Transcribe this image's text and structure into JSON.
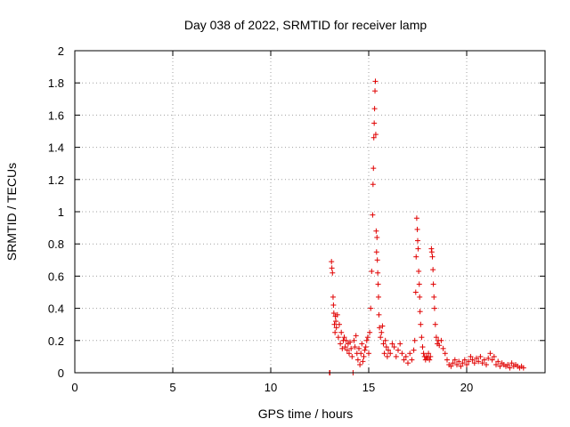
{
  "chart_data": {
    "type": "scatter",
    "title": "Day 038 of 2022, SRMTID for receiver lamp",
    "xlabel": "GPS time / hours",
    "ylabel": "SRMTID / TECUs",
    "xlim": [
      0,
      24
    ],
    "ylim": [
      0,
      2
    ],
    "xticks": [
      0,
      5,
      10,
      15,
      20
    ],
    "yticks": [
      0,
      0.2,
      0.4,
      0.6,
      0.8,
      1,
      1.2,
      1.4,
      1.6,
      1.8,
      2
    ],
    "xtick_labels": [
      "0",
      "5",
      "10",
      "15",
      "20"
    ],
    "ytick_labels": [
      "0",
      "0.2",
      "0.4",
      "0.6",
      "0.8",
      "1",
      "1.2",
      "1.4",
      "1.6",
      "1.8",
      "2"
    ],
    "grid": true,
    "marker": "+",
    "color": "#e00000",
    "series": [
      {
        "name": "SRMTID",
        "x": [
          13.0,
          13.02,
          13.1,
          13.12,
          13.15,
          13.18,
          13.2,
          13.22,
          13.25,
          13.28,
          13.3,
          13.32,
          13.35,
          13.4,
          13.45,
          13.5,
          13.55,
          13.6,
          13.65,
          13.7,
          13.75,
          13.8,
          13.85,
          13.9,
          13.95,
          14.0,
          14.05,
          14.1,
          14.15,
          14.2,
          14.25,
          14.3,
          14.35,
          14.4,
          14.45,
          14.5,
          14.55,
          14.6,
          14.65,
          14.7,
          14.75,
          14.8,
          14.85,
          14.9,
          14.95,
          15.0,
          15.05,
          15.1,
          15.15,
          15.2,
          15.22,
          15.24,
          15.26,
          15.28,
          15.3,
          15.32,
          15.34,
          15.36,
          15.38,
          15.4,
          15.42,
          15.44,
          15.46,
          15.48,
          15.5,
          15.52,
          15.55,
          15.6,
          15.65,
          15.7,
          15.75,
          15.8,
          15.85,
          15.9,
          15.95,
          16.0,
          16.1,
          16.2,
          16.3,
          16.4,
          16.5,
          16.6,
          16.7,
          16.8,
          16.9,
          17.0,
          17.1,
          17.2,
          17.3,
          17.35,
          17.4,
          17.42,
          17.45,
          17.48,
          17.5,
          17.52,
          17.55,
          17.58,
          17.6,
          17.62,
          17.65,
          17.7,
          17.75,
          17.8,
          17.85,
          17.9,
          17.95,
          18.0,
          18.05,
          18.1,
          18.15,
          18.2,
          18.22,
          18.25,
          18.28,
          18.3,
          18.33,
          18.36,
          18.4,
          18.45,
          18.5,
          18.55,
          18.6,
          18.7,
          18.8,
          18.9,
          19.0,
          19.1,
          19.2,
          19.3,
          19.4,
          19.5,
          19.6,
          19.7,
          19.8,
          19.9,
          20.0,
          20.1,
          20.2,
          20.3,
          20.4,
          20.5,
          20.6,
          20.7,
          20.8,
          20.9,
          21.0,
          21.1,
          21.2,
          21.3,
          21.4,
          21.5,
          21.6,
          21.7,
          21.8,
          21.9,
          22.0,
          22.1,
          22.2,
          22.3,
          22.4,
          22.5,
          22.6,
          22.7,
          22.8,
          22.9
        ],
        "y": [
          0.0,
          0.0,
          0.69,
          0.65,
          0.62,
          0.47,
          0.42,
          0.37,
          0.3,
          0.25,
          0.35,
          0.32,
          0.28,
          0.36,
          0.22,
          0.3,
          0.18,
          0.25,
          0.15,
          0.2,
          0.22,
          0.16,
          0.2,
          0.14,
          0.18,
          0.12,
          0.19,
          0.15,
          0.1,
          0.0,
          0.2,
          0.16,
          0.23,
          0.12,
          0.08,
          0.15,
          0.05,
          0.12,
          0.18,
          0.07,
          0.1,
          0.14,
          0.16,
          0.2,
          0.22,
          0.12,
          0.25,
          0.4,
          0.63,
          0.98,
          1.17,
          1.27,
          1.46,
          1.55,
          1.64,
          1.75,
          1.81,
          1.48,
          0.88,
          0.75,
          0.84,
          0.7,
          0.62,
          0.55,
          0.47,
          0.36,
          0.28,
          0.22,
          0.25,
          0.29,
          0.18,
          0.12,
          0.2,
          0.16,
          0.1,
          0.14,
          0.12,
          0.18,
          0.16,
          0.1,
          0.14,
          0.18,
          0.12,
          0.08,
          0.1,
          0.06,
          0.12,
          0.08,
          0.14,
          0.2,
          0.5,
          0.72,
          0.96,
          0.89,
          0.82,
          0.77,
          0.63,
          0.55,
          0.47,
          0.38,
          0.3,
          0.22,
          0.16,
          0.12,
          0.1,
          0.08,
          0.1,
          0.09,
          0.12,
          0.08,
          0.1,
          0.77,
          0.75,
          0.72,
          0.64,
          0.55,
          0.47,
          0.4,
          0.3,
          0.22,
          0.18,
          0.2,
          0.17,
          0.2,
          0.15,
          0.12,
          0.08,
          0.05,
          0.04,
          0.06,
          0.08,
          0.05,
          0.07,
          0.04,
          0.06,
          0.08,
          0.05,
          0.07,
          0.1,
          0.08,
          0.06,
          0.09,
          0.07,
          0.1,
          0.06,
          0.08,
          0.05,
          0.09,
          0.12,
          0.08,
          0.1,
          0.05,
          0.07,
          0.04,
          0.06,
          0.05,
          0.04,
          0.05,
          0.03,
          0.06,
          0.04,
          0.05,
          0.04,
          0.03,
          0.04,
          0.03
        ]
      }
    ]
  }
}
